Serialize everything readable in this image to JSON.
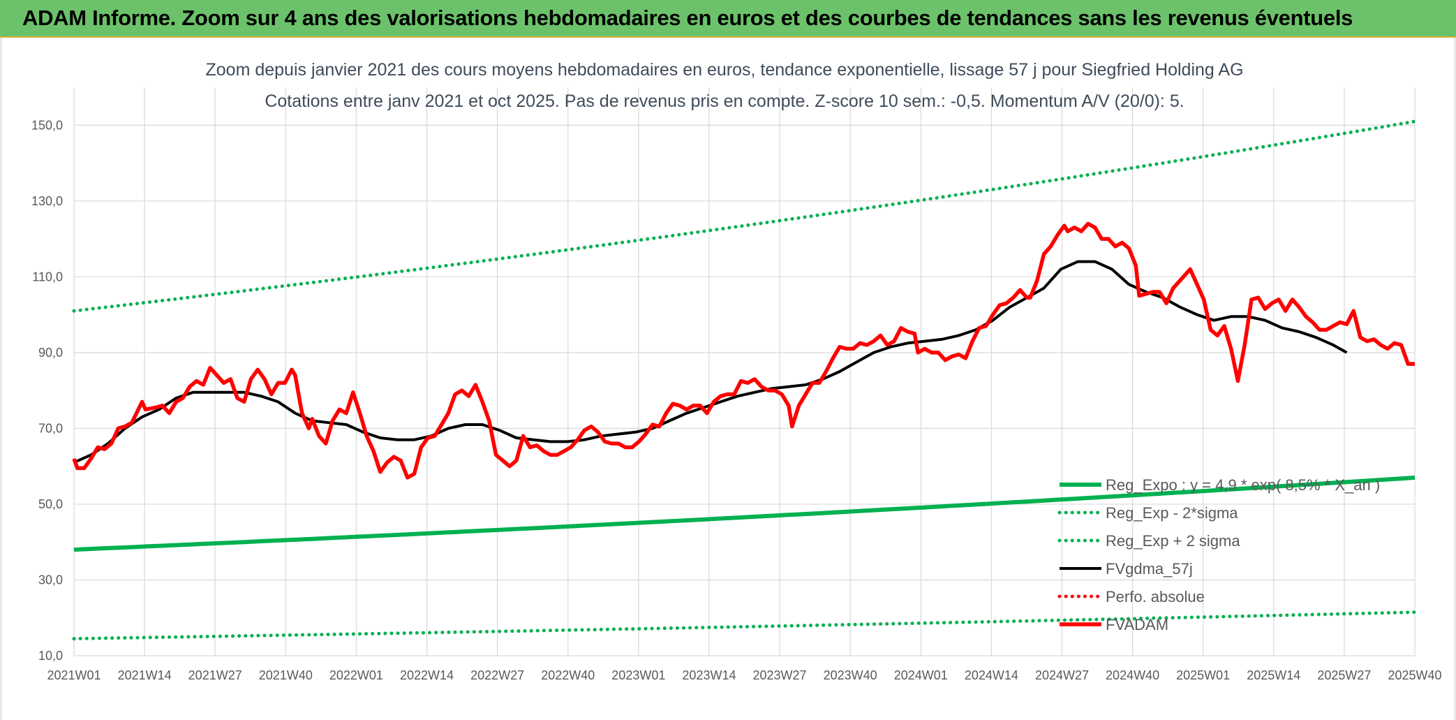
{
  "header": {
    "title": "ADAM Informe. Zoom sur 4 ans des valorisations hebdomadaires en euros et des courbes de tendances sans les revenus éventuels"
  },
  "colors": {
    "banner_bg": "#6cc26a",
    "green": "#00b050",
    "black": "#000000",
    "red": "#ff0000",
    "grid": "#d9d9d9"
  },
  "chart_data": {
    "type": "line",
    "title": "Zoom depuis janvier 2021 des cours moyens hebdomadaires en euros, tendance exponentielle, lissage 57 j pour Siegfried Holding AG",
    "subtitle": "Cotations entre janv 2021 et oct 2025. Pas de revenus pris en compte. Z-score 10 sem.: -0,5. Momentum A/V (20/0): 5.",
    "xlabel": "",
    "ylabel": "",
    "ylim": [
      10,
      160
    ],
    "y_ticks": [
      "10,0",
      "30,0",
      "50,0",
      "70,0",
      "90,0",
      "110,0",
      "130,0",
      "150,0"
    ],
    "x_ticks": [
      "2021W01",
      "2021W14",
      "2021W27",
      "2021W40",
      "2022W01",
      "2022W14",
      "2022W27",
      "2022W40",
      "2023W01",
      "2023W14",
      "2023W27",
      "2023W40",
      "2024W01",
      "2024W14",
      "2024W27",
      "2024W40",
      "2025W01",
      "2025W14",
      "2025W27",
      "2025W40"
    ],
    "grid": true,
    "legend_position": "bottom-right",
    "series": [
      {
        "name": "Reg_Expo : y = 4,9 * exp( 8,5% * X_an )",
        "style": "solid-thick",
        "color": "#00b050",
        "start": 38,
        "end": 57
      },
      {
        "name": "Reg_Exp - 2*sigma",
        "style": "dotted",
        "color": "#00b050",
        "start": 14.5,
        "end": 21.5
      },
      {
        "name": "Reg_Exp + 2 sigma",
        "style": "dotted",
        "color": "#00b050",
        "start": 101,
        "end": 151
      },
      {
        "name": "FVgdma_57j",
        "style": "solid",
        "color": "#000000",
        "points": [
          [
            0,
            61
          ],
          [
            5,
            63
          ],
          [
            10,
            66
          ],
          [
            15,
            70
          ],
          [
            20,
            73
          ],
          [
            25,
            75
          ],
          [
            30,
            78
          ],
          [
            35,
            79.5
          ],
          [
            40,
            79.5
          ],
          [
            45,
            79.5
          ],
          [
            50,
            79.5
          ],
          [
            55,
            78.5
          ],
          [
            60,
            77
          ],
          [
            65,
            74
          ],
          [
            70,
            72
          ],
          [
            75,
            71.5
          ],
          [
            80,
            71
          ],
          [
            85,
            69
          ],
          [
            90,
            67.5
          ],
          [
            95,
            67
          ],
          [
            100,
            67
          ],
          [
            105,
            68
          ],
          [
            110,
            70
          ],
          [
            115,
            71
          ],
          [
            120,
            71
          ],
          [
            125,
            69.5
          ],
          [
            130,
            67.5
          ],
          [
            135,
            67
          ],
          [
            140,
            66.5
          ],
          [
            145,
            66.5
          ],
          [
            150,
            67
          ],
          [
            155,
            68
          ],
          [
            160,
            68.5
          ],
          [
            165,
            69
          ],
          [
            170,
            70
          ],
          [
            175,
            72
          ],
          [
            180,
            74
          ],
          [
            185,
            75.5
          ],
          [
            190,
            77
          ],
          [
            195,
            78.5
          ],
          [
            200,
            79.5
          ],
          [
            205,
            80.5
          ],
          [
            210,
            81
          ],
          [
            215,
            81.5
          ],
          [
            220,
            83
          ],
          [
            225,
            85
          ],
          [
            230,
            87.5
          ],
          [
            235,
            90
          ],
          [
            240,
            91.5
          ],
          [
            245,
            92.5
          ],
          [
            250,
            93
          ],
          [
            255,
            93.5
          ],
          [
            260,
            94.5
          ],
          [
            265,
            96
          ],
          [
            270,
            98.5
          ],
          [
            275,
            102
          ],
          [
            280,
            104.5
          ],
          [
            285,
            107
          ],
          [
            290,
            112
          ],
          [
            295,
            114
          ],
          [
            300,
            114
          ],
          [
            305,
            112
          ],
          [
            310,
            108
          ],
          [
            315,
            106
          ],
          [
            320,
            104.5
          ],
          [
            325,
            102
          ],
          [
            330,
            100
          ],
          [
            335,
            98.5
          ],
          [
            340,
            99.5
          ],
          [
            345,
            99.5
          ],
          [
            350,
            98.5
          ],
          [
            355,
            96.5
          ],
          [
            360,
            95.5
          ],
          [
            365,
            94
          ],
          [
            370,
            92
          ],
          [
            374,
            90
          ]
        ]
      },
      {
        "name": "Perfo. absolue",
        "style": "dotted",
        "color": "#ff0000"
      },
      {
        "name": "FVADAM",
        "style": "solid-thick",
        "color": "#ff0000",
        "points": [
          [
            0,
            62
          ],
          [
            1,
            59.5
          ],
          [
            3,
            59.5
          ],
          [
            5,
            62
          ],
          [
            7,
            65
          ],
          [
            9,
            64.5
          ],
          [
            11,
            66
          ],
          [
            13,
            70
          ],
          [
            15,
            70.5
          ],
          [
            17,
            71.5
          ],
          [
            20,
            77
          ],
          [
            21,
            75
          ],
          [
            24,
            75.5
          ],
          [
            26,
            76
          ],
          [
            28,
            74
          ],
          [
            30,
            77
          ],
          [
            32,
            78
          ],
          [
            34,
            81
          ],
          [
            36,
            82.5
          ],
          [
            38,
            81.5
          ],
          [
            40,
            86
          ],
          [
            42,
            84
          ],
          [
            44,
            82
          ],
          [
            46,
            83
          ],
          [
            48,
            78
          ],
          [
            50,
            77
          ],
          [
            52,
            83
          ],
          [
            54,
            85.5
          ],
          [
            56,
            83
          ],
          [
            58,
            79
          ],
          [
            60,
            82
          ],
          [
            62,
            82
          ],
          [
            64,
            85.5
          ],
          [
            65,
            84
          ],
          [
            67,
            74
          ],
          [
            69,
            70
          ],
          [
            70,
            72.5
          ],
          [
            72,
            68
          ],
          [
            74,
            66
          ],
          [
            76,
            72
          ],
          [
            78,
            75
          ],
          [
            80,
            74
          ],
          [
            82,
            79.5
          ],
          [
            84,
            74
          ],
          [
            86,
            68
          ],
          [
            88,
            64
          ],
          [
            90,
            58.5
          ],
          [
            92,
            61
          ],
          [
            94,
            62.5
          ],
          [
            96,
            61.5
          ],
          [
            98,
            57
          ],
          [
            100,
            58
          ],
          [
            102,
            65
          ],
          [
            104,
            67.5
          ],
          [
            106,
            68
          ],
          [
            108,
            71
          ],
          [
            110,
            74
          ],
          [
            112,
            79
          ],
          [
            114,
            80
          ],
          [
            116,
            78.5
          ],
          [
            118,
            81.5
          ],
          [
            120,
            77
          ],
          [
            122,
            72
          ],
          [
            124,
            63
          ],
          [
            126,
            61.5
          ],
          [
            128,
            60
          ],
          [
            130,
            61.5
          ],
          [
            132,
            68
          ],
          [
            134,
            65
          ],
          [
            136,
            65.5
          ],
          [
            138,
            64
          ],
          [
            140,
            63
          ],
          [
            142,
            63
          ],
          [
            144,
            64
          ],
          [
            146,
            65
          ],
          [
            148,
            67
          ],
          [
            150,
            69.5
          ],
          [
            152,
            70.5
          ],
          [
            154,
            69
          ],
          [
            156,
            66.5
          ],
          [
            158,
            66
          ],
          [
            160,
            66
          ],
          [
            162,
            65
          ],
          [
            164,
            65
          ],
          [
            166,
            66.5
          ],
          [
            168,
            68.5
          ],
          [
            170,
            71
          ],
          [
            172,
            70.5
          ],
          [
            174,
            74
          ],
          [
            176,
            76.5
          ],
          [
            178,
            76
          ],
          [
            180,
            75
          ],
          [
            182,
            76
          ],
          [
            184,
            76
          ],
          [
            186,
            74
          ],
          [
            188,
            77
          ],
          [
            190,
            78.5
          ],
          [
            192,
            79
          ],
          [
            194,
            79
          ],
          [
            196,
            82.5
          ],
          [
            198,
            82
          ],
          [
            200,
            83
          ],
          [
            202,
            81
          ],
          [
            204,
            80
          ],
          [
            206,
            80
          ],
          [
            208,
            79
          ],
          [
            210,
            76
          ],
          [
            211,
            70.5
          ],
          [
            213,
            76
          ],
          [
            215,
            79
          ],
          [
            217,
            82
          ],
          [
            219,
            82
          ],
          [
            221,
            85
          ],
          [
            223,
            88.5
          ],
          [
            225,
            91.5
          ],
          [
            227,
            91
          ],
          [
            229,
            91
          ],
          [
            231,
            92.5
          ],
          [
            233,
            92
          ],
          [
            235,
            93
          ],
          [
            237,
            94.5
          ],
          [
            239,
            92
          ],
          [
            241,
            93
          ],
          [
            243,
            96.5
          ],
          [
            245,
            95.5
          ],
          [
            247,
            95
          ],
          [
            248,
            90
          ],
          [
            250,
            91
          ],
          [
            252,
            90
          ],
          [
            254,
            90
          ],
          [
            256,
            88
          ],
          [
            258,
            89
          ],
          [
            260,
            89.5
          ],
          [
            262,
            88.5
          ],
          [
            264,
            93
          ],
          [
            266,
            96.5
          ],
          [
            268,
            97
          ],
          [
            270,
            100
          ],
          [
            272,
            102.5
          ],
          [
            274,
            103
          ],
          [
            276,
            104.5
          ],
          [
            278,
            106.5
          ],
          [
            280,
            104.5
          ],
          [
            281,
            104.5
          ],
          [
            283,
            109
          ],
          [
            285,
            116
          ],
          [
            287,
            118
          ],
          [
            289,
            121
          ],
          [
            291,
            123.5
          ],
          [
            292,
            122
          ],
          [
            294,
            123
          ],
          [
            296,
            122
          ],
          [
            298,
            124
          ],
          [
            300,
            123
          ],
          [
            302,
            120
          ],
          [
            304,
            120
          ],
          [
            306,
            118
          ],
          [
            308,
            119
          ],
          [
            310,
            117.5
          ],
          [
            312,
            113
          ],
          [
            313,
            105
          ],
          [
            315,
            105.5
          ],
          [
            317,
            106
          ],
          [
            319,
            106
          ],
          [
            321,
            103
          ],
          [
            323,
            107
          ],
          [
            325,
            109
          ],
          [
            327,
            111
          ],
          [
            328,
            112
          ],
          [
            330,
            108
          ],
          [
            332,
            104
          ],
          [
            334,
            96
          ],
          [
            336,
            94.5
          ],
          [
            338,
            97
          ],
          [
            340,
            91
          ],
          [
            342,
            82.5
          ],
          [
            344,
            92
          ],
          [
            346,
            104
          ],
          [
            348,
            104.5
          ],
          [
            350,
            101.5
          ],
          [
            352,
            103
          ],
          [
            354,
            104
          ],
          [
            356,
            101
          ],
          [
            358,
            104
          ],
          [
            360,
            102
          ],
          [
            362,
            99.5
          ],
          [
            364,
            98
          ],
          [
            366,
            96
          ],
          [
            368,
            96
          ],
          [
            370,
            97
          ],
          [
            372,
            98
          ],
          [
            374,
            97.5
          ],
          [
            376,
            101
          ],
          [
            378,
            94
          ],
          [
            380,
            93
          ],
          [
            382,
            93.5
          ],
          [
            384,
            92
          ],
          [
            386,
            91
          ],
          [
            388,
            92.5
          ],
          [
            390,
            92
          ],
          [
            392,
            87
          ],
          [
            394,
            87
          ]
        ]
      }
    ]
  }
}
